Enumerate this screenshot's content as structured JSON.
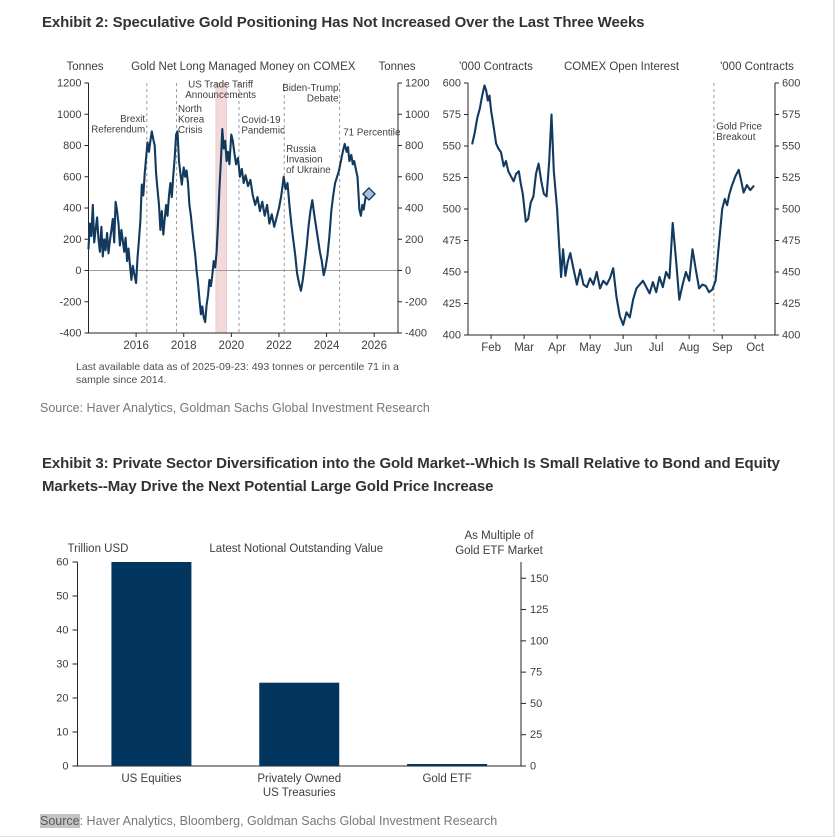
{
  "exhibit2": {
    "title": "Exhibit 2: Speculative Gold Positioning Has Not Increased Over the Last Three Weeks",
    "footnote": "Last available data as of 2025-09-23: 493 tonnes or percentile 71 in a sample since 2014.",
    "source": "Source: Haver Analytics, Goldman Sachs Global Investment Research"
  },
  "exhibit3": {
    "title_line1": "Exhibit 3: Private Sector Diversification into the Gold Market--Which Is Small Relative to Bond and Equity",
    "title_line2": "Markets--May Drive the Next Potential Large Gold Price Increase",
    "source_label": "Source",
    "source_rest": ": Haver Analytics, Bloomberg, Goldman Sachs Global Investment Research"
  },
  "colors": {
    "navy": "#03365e",
    "line_navy": "#123a5f",
    "diamond_fill": "#a6c3de",
    "band_fill": "#f3d9da",
    "band_edge": "#e6bcbd",
    "axis": "#262626",
    "text": "#3e3e3e",
    "zero_line": "#9b9b9b",
    "dash_line": "#8f8f8f"
  },
  "chart_data": [
    {
      "type": "line",
      "title": "Gold Net Long Managed Money on COMEX",
      "y_axis_label_left": "Tonnes",
      "y_axis_label_right": "Tonnes",
      "x_range": [
        2014,
        2027
      ],
      "y_range": [
        -400,
        1200
      ],
      "y_ticks": [
        -400,
        -200,
        0,
        200,
        400,
        600,
        800,
        1000,
        1200
      ],
      "x_ticks": [
        {
          "v": 2016,
          "label": "2016"
        },
        {
          "v": 2018,
          "label": "2018"
        },
        {
          "v": 2020,
          "label": "2020"
        },
        {
          "v": 2022,
          "label": "2022"
        },
        {
          "v": 2024,
          "label": "2024"
        },
        {
          "v": 2026,
          "label": "2026"
        }
      ],
      "zero_line": true,
      "shaded_band": [
        2019.35,
        2019.8
      ],
      "event_lines": [
        2016.45,
        2017.7,
        2020.32,
        2022.22,
        2024.55
      ],
      "annotations": [
        {
          "x": 2016.38,
          "y": 950,
          "align": "end",
          "lines": [
            "Brexit",
            "Referendum"
          ]
        },
        {
          "x": 2017.76,
          "y": 1015,
          "align": "start",
          "lines": [
            "North",
            "Korea",
            "Crisis"
          ]
        },
        {
          "x": 2019.55,
          "y": 1172,
          "align": "middle",
          "lines": [
            "US Trade Tariff",
            "Announcements"
          ]
        },
        {
          "x": 2020.42,
          "y": 945,
          "align": "start",
          "lines": [
            "Covid-19",
            "Pandemic"
          ]
        },
        {
          "x": 2024.5,
          "y": 1150,
          "align": "end",
          "lines": [
            "Biden-Trump",
            "Debate"
          ]
        },
        {
          "x": 2022.3,
          "y": 760,
          "align": "start",
          "lines": [
            "Russia",
            "Invasion",
            "of Ukraine"
          ]
        },
        {
          "x": 2024.7,
          "y": 865,
          "align": "start",
          "lines": [
            "71 Percentile"
          ]
        }
      ],
      "end_marker": {
        "x": 2025.78,
        "y": 490
      },
      "points": [
        [
          2014.0,
          140
        ],
        [
          2014.06,
          300
        ],
        [
          2014.12,
          220
        ],
        [
          2014.18,
          420
        ],
        [
          2014.24,
          180
        ],
        [
          2014.3,
          260
        ],
        [
          2014.36,
          340
        ],
        [
          2014.42,
          200
        ],
        [
          2014.48,
          120
        ],
        [
          2014.54,
          280
        ],
        [
          2014.6,
          90
        ],
        [
          2014.66,
          200
        ],
        [
          2014.72,
          130
        ],
        [
          2014.78,
          240
        ],
        [
          2014.84,
          110
        ],
        [
          2014.9,
          190
        ],
        [
          2014.96,
          260
        ],
        [
          2015.02,
          330
        ],
        [
          2015.08,
          180
        ],
        [
          2015.14,
          440
        ],
        [
          2015.2,
          380
        ],
        [
          2015.26,
          300
        ],
        [
          2015.32,
          160
        ],
        [
          2015.38,
          260
        ],
        [
          2015.44,
          190
        ],
        [
          2015.5,
          120
        ],
        [
          2015.56,
          210
        ],
        [
          2015.62,
          60
        ],
        [
          2015.68,
          140
        ],
        [
          2015.74,
          40
        ],
        [
          2015.8,
          -60
        ],
        [
          2015.86,
          30
        ],
        [
          2015.92,
          -20
        ],
        [
          2016.0,
          -80
        ],
        [
          2016.06,
          80
        ],
        [
          2016.12,
          200
        ],
        [
          2016.18,
          320
        ],
        [
          2016.24,
          550
        ],
        [
          2016.3,
          480
        ],
        [
          2016.36,
          620
        ],
        [
          2016.42,
          720
        ],
        [
          2016.48,
          820
        ],
        [
          2016.54,
          760
        ],
        [
          2016.6,
          830
        ],
        [
          2016.66,
          890
        ],
        [
          2016.72,
          840
        ],
        [
          2016.78,
          800
        ],
        [
          2016.84,
          620
        ],
        [
          2016.9,
          520
        ],
        [
          2016.96,
          420
        ],
        [
          2017.02,
          260
        ],
        [
          2017.08,
          380
        ],
        [
          2017.14,
          230
        ],
        [
          2017.2,
          330
        ],
        [
          2017.26,
          420
        ],
        [
          2017.32,
          350
        ],
        [
          2017.38,
          480
        ],
        [
          2017.44,
          560
        ],
        [
          2017.5,
          470
        ],
        [
          2017.56,
          610
        ],
        [
          2017.62,
          720
        ],
        [
          2017.68,
          870
        ],
        [
          2017.74,
          890
        ],
        [
          2017.8,
          700
        ],
        [
          2017.86,
          620
        ],
        [
          2017.92,
          550
        ],
        [
          2018.0,
          660
        ],
        [
          2018.06,
          600
        ],
        [
          2018.12,
          640
        ],
        [
          2018.18,
          560
        ],
        [
          2018.24,
          420
        ],
        [
          2018.3,
          350
        ],
        [
          2018.36,
          260
        ],
        [
          2018.42,
          180
        ],
        [
          2018.48,
          100
        ],
        [
          2018.54,
          0
        ],
        [
          2018.6,
          -80
        ],
        [
          2018.66,
          -180
        ],
        [
          2018.72,
          -280
        ],
        [
          2018.78,
          -230
        ],
        [
          2018.84,
          -300
        ],
        [
          2018.9,
          -330
        ],
        [
          2018.96,
          -220
        ],
        [
          2019.02,
          -160
        ],
        [
          2019.08,
          -60
        ],
        [
          2019.14,
          -100
        ],
        [
          2019.2,
          -30
        ],
        [
          2019.26,
          60
        ],
        [
          2019.32,
          20
        ],
        [
          2019.38,
          120
        ],
        [
          2019.44,
          300
        ],
        [
          2019.5,
          520
        ],
        [
          2019.56,
          700
        ],
        [
          2019.62,
          905
        ],
        [
          2019.68,
          780
        ],
        [
          2019.74,
          830
        ],
        [
          2019.8,
          700
        ],
        [
          2019.86,
          760
        ],
        [
          2019.92,
          680
        ],
        [
          2020.0,
          870
        ],
        [
          2020.06,
          830
        ],
        [
          2020.12,
          760
        ],
        [
          2020.2,
          680
        ],
        [
          2020.28,
          720
        ],
        [
          2020.36,
          600
        ],
        [
          2020.44,
          650
        ],
        [
          2020.52,
          560
        ],
        [
          2020.6,
          610
        ],
        [
          2020.7,
          540
        ],
        [
          2020.8,
          580
        ],
        [
          2020.9,
          480
        ],
        [
          2021.0,
          420
        ],
        [
          2021.1,
          470
        ],
        [
          2021.2,
          380
        ],
        [
          2021.3,
          440
        ],
        [
          2021.4,
          350
        ],
        [
          2021.5,
          420
        ],
        [
          2021.6,
          300
        ],
        [
          2021.7,
          360
        ],
        [
          2021.8,
          280
        ],
        [
          2021.9,
          340
        ],
        [
          2022.0,
          400
        ],
        [
          2022.1,
          480
        ],
        [
          2022.2,
          600
        ],
        [
          2022.28,
          520
        ],
        [
          2022.36,
          560
        ],
        [
          2022.44,
          420
        ],
        [
          2022.52,
          300
        ],
        [
          2022.6,
          200
        ],
        [
          2022.68,
          100
        ],
        [
          2022.76,
          -20
        ],
        [
          2022.84,
          -80
        ],
        [
          2022.92,
          -130
        ],
        [
          2023.0,
          -60
        ],
        [
          2023.08,
          40
        ],
        [
          2023.16,
          150
        ],
        [
          2023.24,
          280
        ],
        [
          2023.32,
          380
        ],
        [
          2023.4,
          450
        ],
        [
          2023.48,
          360
        ],
        [
          2023.56,
          280
        ],
        [
          2023.64,
          200
        ],
        [
          2023.72,
          120
        ],
        [
          2023.8,
          60
        ],
        [
          2023.88,
          -30
        ],
        [
          2023.96,
          20
        ],
        [
          2024.04,
          100
        ],
        [
          2024.12,
          220
        ],
        [
          2024.2,
          380
        ],
        [
          2024.28,
          480
        ],
        [
          2024.36,
          560
        ],
        [
          2024.44,
          600
        ],
        [
          2024.52,
          640
        ],
        [
          2024.6,
          700
        ],
        [
          2024.68,
          760
        ],
        [
          2024.76,
          810
        ],
        [
          2024.84,
          760
        ],
        [
          2024.9,
          790
        ],
        [
          2024.96,
          700
        ],
        [
          2025.04,
          740
        ],
        [
          2025.1,
          680
        ],
        [
          2025.16,
          700
        ],
        [
          2025.24,
          640
        ],
        [
          2025.3,
          600
        ],
        [
          2025.38,
          390
        ],
        [
          2025.44,
          350
        ],
        [
          2025.5,
          420
        ],
        [
          2025.56,
          390
        ],
        [
          2025.62,
          450
        ],
        [
          2025.68,
          493
        ]
      ]
    },
    {
      "type": "line",
      "title": "COMEX Open Interest",
      "y_axis_label_left": "'000 Contracts",
      "y_axis_label_right": "'000 Contracts",
      "x_range": [
        1.3,
        10.6
      ],
      "y_range": [
        400,
        600
      ],
      "y_ticks": [
        400,
        425,
        450,
        475,
        500,
        525,
        550,
        575,
        600
      ],
      "x_ticks": [
        {
          "v": 2,
          "label": "Feb"
        },
        {
          "v": 3,
          "label": "Mar"
        },
        {
          "v": 4,
          "label": "Apr"
        },
        {
          "v": 5,
          "label": "May"
        },
        {
          "v": 6,
          "label": "Jun"
        },
        {
          "v": 7,
          "label": "Jul"
        },
        {
          "v": 8,
          "label": "Aug"
        },
        {
          "v": 9,
          "label": "Sep"
        },
        {
          "v": 10,
          "label": "Oct"
        }
      ],
      "zero_line": false,
      "event_lines": [
        8.75
      ],
      "annotations": [
        {
          "x": 8.82,
          "y": 563,
          "align": "start",
          "lines": [
            "Gold Price",
            "Breakout"
          ]
        }
      ],
      "points": [
        [
          1.43,
          552
        ],
        [
          1.5,
          560
        ],
        [
          1.58,
          572
        ],
        [
          1.66,
          580
        ],
        [
          1.73,
          590
        ],
        [
          1.8,
          598
        ],
        [
          1.85,
          594
        ],
        [
          1.9,
          586
        ],
        [
          1.95,
          590
        ],
        [
          2.0,
          578
        ],
        [
          2.08,
          565
        ],
        [
          2.15,
          552
        ],
        [
          2.22,
          548
        ],
        [
          2.3,
          545
        ],
        [
          2.38,
          534
        ],
        [
          2.45,
          538
        ],
        [
          2.52,
          530
        ],
        [
          2.6,
          526
        ],
        [
          2.68,
          522
        ],
        [
          2.76,
          528
        ],
        [
          2.84,
          530
        ],
        [
          2.9,
          520
        ],
        [
          2.96,
          512
        ],
        [
          3.05,
          490
        ],
        [
          3.12,
          492
        ],
        [
          3.2,
          505
        ],
        [
          3.28,
          510
        ],
        [
          3.36,
          528
        ],
        [
          3.44,
          536
        ],
        [
          3.52,
          522
        ],
        [
          3.6,
          512
        ],
        [
          3.68,
          510
        ],
        [
          3.76,
          538
        ],
        [
          3.83,
          575
        ],
        [
          3.9,
          530
        ],
        [
          4.0,
          500
        ],
        [
          4.06,
          472
        ],
        [
          4.12,
          446
        ],
        [
          4.18,
          468
        ],
        [
          4.25,
          447
        ],
        [
          4.32,
          458
        ],
        [
          4.4,
          465
        ],
        [
          4.5,
          452
        ],
        [
          4.6,
          440
        ],
        [
          4.7,
          452
        ],
        [
          4.8,
          440
        ],
        [
          4.9,
          438
        ],
        [
          5.0,
          445
        ],
        [
          5.1,
          440
        ],
        [
          5.2,
          450
        ],
        [
          5.3,
          437
        ],
        [
          5.4,
          443
        ],
        [
          5.5,
          440
        ],
        [
          5.6,
          445
        ],
        [
          5.7,
          453
        ],
        [
          5.8,
          430
        ],
        [
          5.9,
          415
        ],
        [
          6.0,
          408
        ],
        [
          6.1,
          418
        ],
        [
          6.2,
          414
        ],
        [
          6.3,
          428
        ],
        [
          6.4,
          437
        ],
        [
          6.5,
          440
        ],
        [
          6.6,
          443
        ],
        [
          6.7,
          438
        ],
        [
          6.8,
          433
        ],
        [
          6.9,
          442
        ],
        [
          7.0,
          434
        ],
        [
          7.1,
          446
        ],
        [
          7.2,
          438
        ],
        [
          7.3,
          450
        ],
        [
          7.4,
          445
        ],
        [
          7.5,
          489
        ],
        [
          7.6,
          460
        ],
        [
          7.7,
          428
        ],
        [
          7.8,
          440
        ],
        [
          7.9,
          450
        ],
        [
          8.0,
          443
        ],
        [
          8.1,
          468
        ],
        [
          8.2,
          452
        ],
        [
          8.3,
          437
        ],
        [
          8.4,
          440
        ],
        [
          8.5,
          439
        ],
        [
          8.6,
          434
        ],
        [
          8.7,
          436
        ],
        [
          8.8,
          443
        ],
        [
          8.9,
          472
        ],
        [
          9.0,
          500
        ],
        [
          9.08,
          508
        ],
        [
          9.15,
          503
        ],
        [
          9.22,
          512
        ],
        [
          9.3,
          519
        ],
        [
          9.4,
          526
        ],
        [
          9.5,
          531
        ],
        [
          9.58,
          522
        ],
        [
          9.65,
          513
        ],
        [
          9.75,
          519
        ],
        [
          9.85,
          515
        ],
        [
          9.95,
          518
        ]
      ]
    },
    {
      "type": "bar",
      "title": "Latest Notional Outstanding Value",
      "y_axis_label_left": "Trillion USD",
      "y_axis_label_right": [
        "As Multiple of",
        "Gold ETF Market"
      ],
      "categories": [
        [
          "US Equities"
        ],
        [
          "Privately Owned",
          "US Treasuries"
        ],
        [
          "Gold ETF"
        ]
      ],
      "values": [
        60,
        24.5,
        0.4
      ],
      "y_left_ticks": [
        0,
        10,
        20,
        30,
        40,
        50,
        60
      ],
      "y_right_ticks": [
        0,
        25,
        50,
        75,
        100,
        125,
        150
      ],
      "y_left_max": 60,
      "y_right_max": 163
    }
  ]
}
